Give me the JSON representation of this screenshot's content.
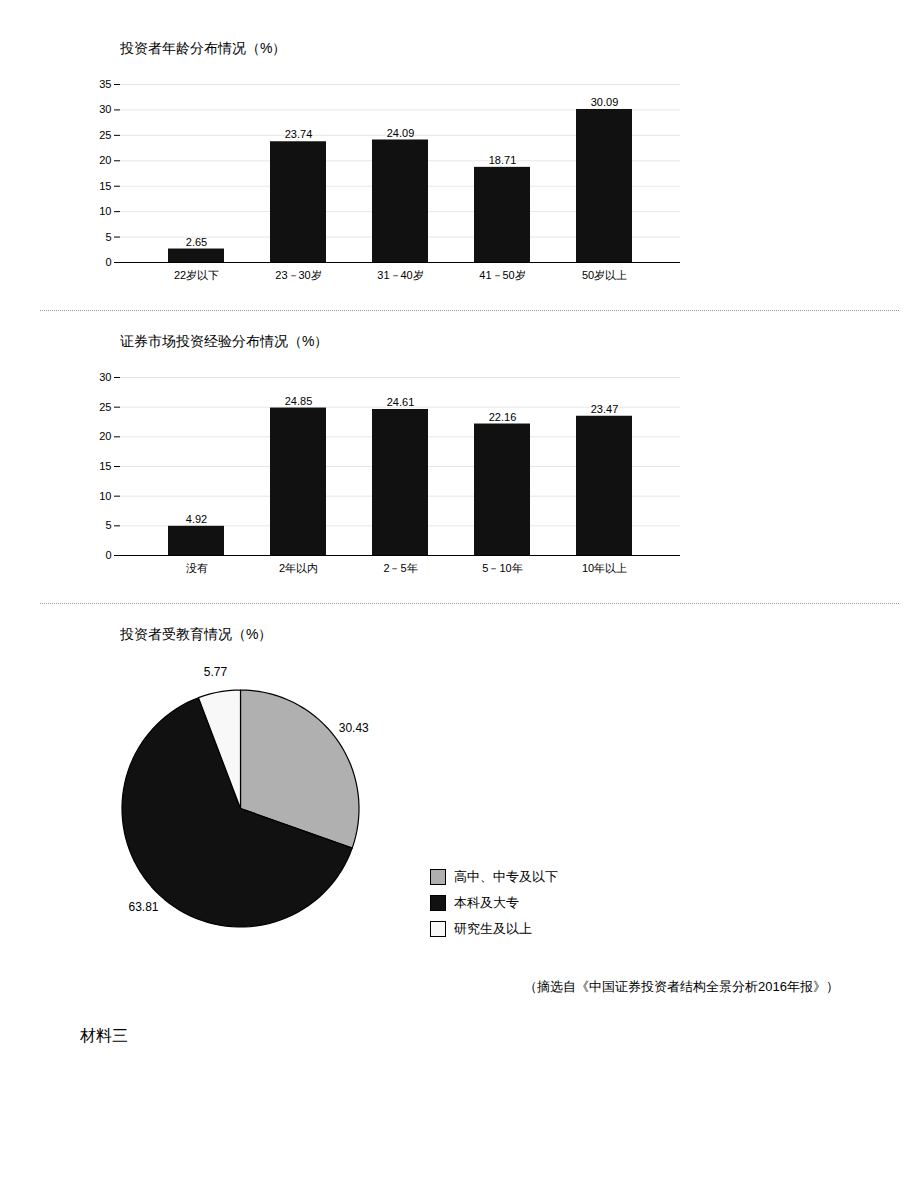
{
  "chart_data": [
    {
      "type": "bar",
      "title": "投资者年龄分布情况（%）",
      "categories": [
        "22岁以下",
        "23－30岁",
        "31－40岁",
        "41－50岁",
        "50岁以上"
      ],
      "values": [
        2.65,
        23.74,
        24.09,
        18.71,
        30.09
      ],
      "color": "#111111",
      "ylim": [
        0,
        35
      ],
      "yticks": [
        0,
        5,
        10,
        15,
        20,
        25,
        30,
        35
      ],
      "grid": true,
      "data_labels": true
    },
    {
      "type": "bar",
      "title": "证券市场投资经验分布情况（%）",
      "categories": [
        "没有",
        "2年以内",
        "2－5年",
        "5－10年",
        "10年以上"
      ],
      "values": [
        4.92,
        24.85,
        24.61,
        22.16,
        23.47
      ],
      "color": "#111111",
      "ylim": [
        0,
        30
      ],
      "yticks": [
        0,
        5,
        10,
        15,
        20,
        25,
        30
      ],
      "grid": true,
      "data_labels": true
    },
    {
      "type": "pie",
      "title": "投资者受教育情况（%）",
      "categories": [
        "高中、中专及以下",
        "本科及大专",
        "研究生及以上"
      ],
      "values": [
        30.43,
        63.81,
        5.77
      ],
      "colors": [
        "#b0b0b0",
        "#111111",
        "#f8f8f8"
      ],
      "data_labels": true,
      "legend": "right",
      "annotations": [
        "（摘选自《中国证券投资者结构全景分析2016年报》）",
        "材料三"
      ]
    }
  ]
}
